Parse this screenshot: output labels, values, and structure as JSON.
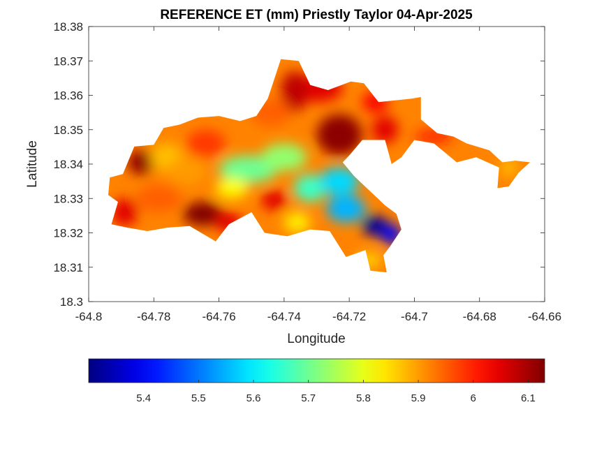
{
  "chart_data": {
    "type": "heatmap",
    "title": "REFERENCE ET (mm) Priestly Taylor 04-Apr-2025",
    "xlabel": "Longitude",
    "ylabel": "Latitude",
    "xlim": [
      -64.8,
      -64.66
    ],
    "ylim": [
      18.3,
      18.38
    ],
    "xticks": [
      -64.8,
      -64.78,
      -64.76,
      -64.74,
      -64.72,
      -64.7,
      -64.68,
      -64.66
    ],
    "yticks": [
      18.3,
      18.31,
      18.32,
      18.33,
      18.34,
      18.35,
      18.36,
      18.37,
      18.38
    ],
    "x_tick_labels": [
      "-64.8",
      "-64.78",
      "-64.76",
      "-64.74",
      "-64.72",
      "-64.7",
      "-64.68",
      "-64.66"
    ],
    "y_tick_labels": [
      "18.3",
      "18.31",
      "18.32",
      "18.33",
      "18.34",
      "18.35",
      "18.36",
      "18.37",
      "18.38"
    ],
    "colorbar": {
      "colormap": "jet",
      "range": [
        5.3,
        6.13
      ],
      "ticks": [
        5.4,
        5.5,
        5.6,
        5.7,
        5.8,
        5.9,
        6.0,
        6.1
      ],
      "tick_labels": [
        "5.4",
        "5.5",
        "5.6",
        "5.7",
        "5.8",
        "5.9",
        "6",
        "6.1"
      ],
      "placement": "bottom"
    },
    "outline": [
      [
        -64.7935,
        18.3361
      ],
      [
        -64.7895,
        18.3371
      ],
      [
        -64.786,
        18.3451
      ],
      [
        -64.78,
        18.3456
      ],
      [
        -64.777,
        18.3505
      ],
      [
        -64.772,
        18.3515
      ],
      [
        -64.7665,
        18.3535
      ],
      [
        -64.76,
        18.354
      ],
      [
        -64.7535,
        18.3525
      ],
      [
        -64.7485,
        18.354
      ],
      [
        -64.745,
        18.359
      ],
      [
        -64.741,
        18.3705
      ],
      [
        -64.7355,
        18.37
      ],
      [
        -64.732,
        18.363
      ],
      [
        -64.7265,
        18.3615
      ],
      [
        -64.7195,
        18.364
      ],
      [
        -64.7155,
        18.3635
      ],
      [
        -64.711,
        18.358
      ],
      [
        -64.701,
        18.359
      ],
      [
        -64.698,
        18.3595
      ],
      [
        -64.698,
        18.353
      ],
      [
        -64.693,
        18.349
      ],
      [
        -64.688,
        18.348
      ],
      [
        -64.684,
        18.346
      ],
      [
        -64.677,
        18.344
      ],
      [
        -64.673,
        18.3405
      ],
      [
        -64.669,
        18.341
      ],
      [
        -64.6645,
        18.3405
      ],
      [
        -64.668,
        18.3375
      ],
      [
        -64.671,
        18.3335
      ],
      [
        -64.6745,
        18.333
      ],
      [
        -64.674,
        18.339
      ],
      [
        -64.681,
        18.342
      ],
      [
        -64.687,
        18.3405
      ],
      [
        -64.694,
        18.346
      ],
      [
        -64.7,
        18.347
      ],
      [
        -64.704,
        18.342
      ],
      [
        -64.707,
        18.34
      ],
      [
        -64.709,
        18.347
      ],
      [
        -64.716,
        18.347
      ],
      [
        -64.72,
        18.3425
      ],
      [
        -64.722,
        18.3405
      ],
      [
        -64.7185,
        18.3365
      ],
      [
        -64.709,
        18.328
      ],
      [
        -64.7055,
        18.3255
      ],
      [
        -64.704,
        18.321
      ],
      [
        -64.7075,
        18.316
      ],
      [
        -64.7095,
        18.3135
      ],
      [
        -64.7085,
        18.3085
      ],
      [
        -64.7135,
        18.309
      ],
      [
        -64.715,
        18.315
      ],
      [
        -64.721,
        18.313
      ],
      [
        -64.726,
        18.3205
      ],
      [
        -64.732,
        18.321
      ],
      [
        -64.739,
        18.319
      ],
      [
        -64.746,
        18.32
      ],
      [
        -64.75,
        18.326
      ],
      [
        -64.757,
        18.3225
      ],
      [
        -64.761,
        18.3175
      ],
      [
        -64.769,
        18.322
      ],
      [
        -64.776,
        18.3215
      ],
      [
        -64.782,
        18.3205
      ],
      [
        -64.788,
        18.3215
      ],
      [
        -64.793,
        18.3225
      ],
      [
        -64.791,
        18.329
      ],
      [
        -64.794,
        18.331
      ]
    ],
    "blobs": [
      {
        "lon": -64.784,
        "lat": 18.3405,
        "value": 6.12,
        "rlon": 0.004,
        "rlat": 0.0035
      },
      {
        "lon": -64.765,
        "lat": 18.3255,
        "value": 6.13,
        "rlon": 0.006,
        "rlat": 0.0035
      },
      {
        "lon": -64.757,
        "lat": 18.323,
        "value": 6.05,
        "rlon": 0.004,
        "rlat": 0.003
      },
      {
        "lon": -64.789,
        "lat": 18.326,
        "value": 6.05,
        "rlon": 0.004,
        "rlat": 0.004
      },
      {
        "lon": -64.7785,
        "lat": 18.33,
        "value": 5.95,
        "rlon": 0.007,
        "rlat": 0.004
      },
      {
        "lon": -64.776,
        "lat": 18.342,
        "value": 5.87,
        "rlon": 0.005,
        "rlat": 0.004
      },
      {
        "lon": -64.77,
        "lat": 18.338,
        "value": 5.9,
        "rlon": 0.006,
        "rlat": 0.004
      },
      {
        "lon": -64.764,
        "lat": 18.346,
        "value": 5.98,
        "rlon": 0.006,
        "rlat": 0.004
      },
      {
        "lon": -64.73,
        "lat": 18.362,
        "value": 6.05,
        "rlon": 0.008,
        "rlat": 0.004
      },
      {
        "lon": -64.737,
        "lat": 18.361,
        "value": 6.08,
        "rlon": 0.004,
        "rlat": 0.006
      },
      {
        "lon": -64.723,
        "lat": 18.3485,
        "value": 6.12,
        "rlon": 0.007,
        "rlat": 0.006
      },
      {
        "lon": -64.712,
        "lat": 18.358,
        "value": 6.03,
        "rlon": 0.004,
        "rlat": 0.003
      },
      {
        "lon": -64.709,
        "lat": 18.35,
        "value": 6.05,
        "rlon": 0.004,
        "rlat": 0.004
      },
      {
        "lon": -64.744,
        "lat": 18.355,
        "value": 5.95,
        "rlon": 0.006,
        "rlat": 0.004
      },
      {
        "lon": -64.751,
        "lat": 18.3385,
        "value": 5.7,
        "rlon": 0.009,
        "rlat": 0.004
      },
      {
        "lon": -64.74,
        "lat": 18.342,
        "value": 5.73,
        "rlon": 0.007,
        "rlat": 0.004
      },
      {
        "lon": -64.756,
        "lat": 18.333,
        "value": 5.82,
        "rlon": 0.005,
        "rlat": 0.003
      },
      {
        "lon": -64.743,
        "lat": 18.3295,
        "value": 6.05,
        "rlon": 0.004,
        "rlat": 0.003
      },
      {
        "lon": -64.736,
        "lat": 18.323,
        "value": 5.83,
        "rlon": 0.004,
        "rlat": 0.003
      },
      {
        "lon": -64.732,
        "lat": 18.333,
        "value": 5.66,
        "rlon": 0.005,
        "rlat": 0.004
      },
      {
        "lon": -64.723,
        "lat": 18.335,
        "value": 5.58,
        "rlon": 0.006,
        "rlat": 0.004
      },
      {
        "lon": -64.721,
        "lat": 18.327,
        "value": 5.55,
        "rlon": 0.006,
        "rlat": 0.004
      },
      {
        "lon": -64.712,
        "lat": 18.322,
        "value": 5.32,
        "rlon": 0.004,
        "rlat": 0.003
      },
      {
        "lon": -64.707,
        "lat": 18.3195,
        "value": 5.4,
        "rlon": 0.003,
        "rlat": 0.003
      },
      {
        "lon": -64.714,
        "lat": 18.312,
        "value": 5.85,
        "rlon": 0.004,
        "rlat": 0.002
      },
      {
        "lon": -64.671,
        "lat": 18.339,
        "value": 5.88,
        "rlon": 0.003,
        "rlat": 0.003
      },
      {
        "lon": -64.694,
        "lat": 18.348,
        "value": 6.0,
        "rlon": 0.006,
        "rlat": 0.002
      }
    ],
    "background_value": 5.92
  }
}
